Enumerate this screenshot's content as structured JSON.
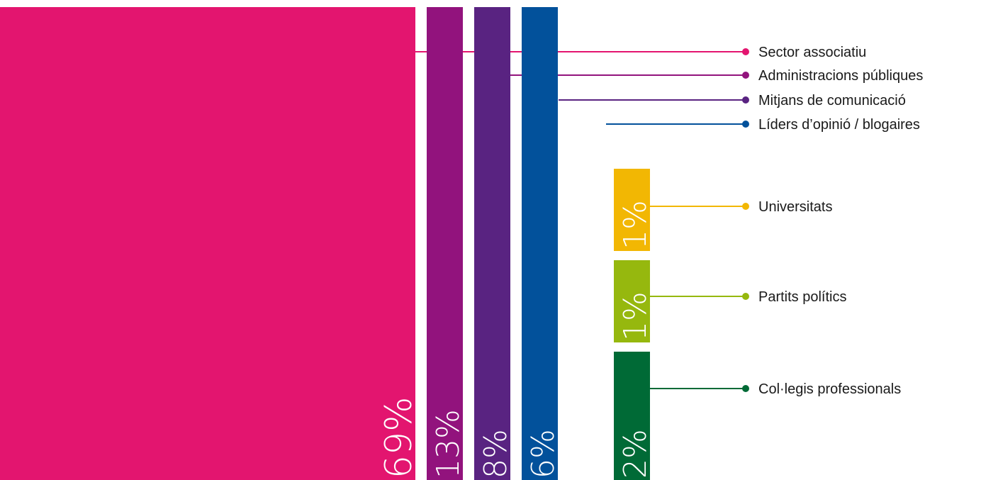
{
  "chart_data": {
    "type": "bar",
    "title": "",
    "categories": [
      "Sector associatiu",
      "Administracions públiques",
      "Mitjans de comunicació",
      "Líders d’opinió / blogaires",
      "Universitats",
      "Partits polítics",
      "Col·legis professionals"
    ],
    "values": [
      69,
      13,
      8,
      6,
      1,
      1,
      2
    ],
    "value_labels": [
      "69%",
      "13%",
      "8%",
      "6%",
      "1%",
      "1%",
      "2%"
    ],
    "unit": "%",
    "colors": [
      "#e3156f",
      "#92137d",
      "#592381",
      "#02519b",
      "#f2b703",
      "#96b80e",
      "#006a36"
    ],
    "legend": "right",
    "grid": false
  }
}
